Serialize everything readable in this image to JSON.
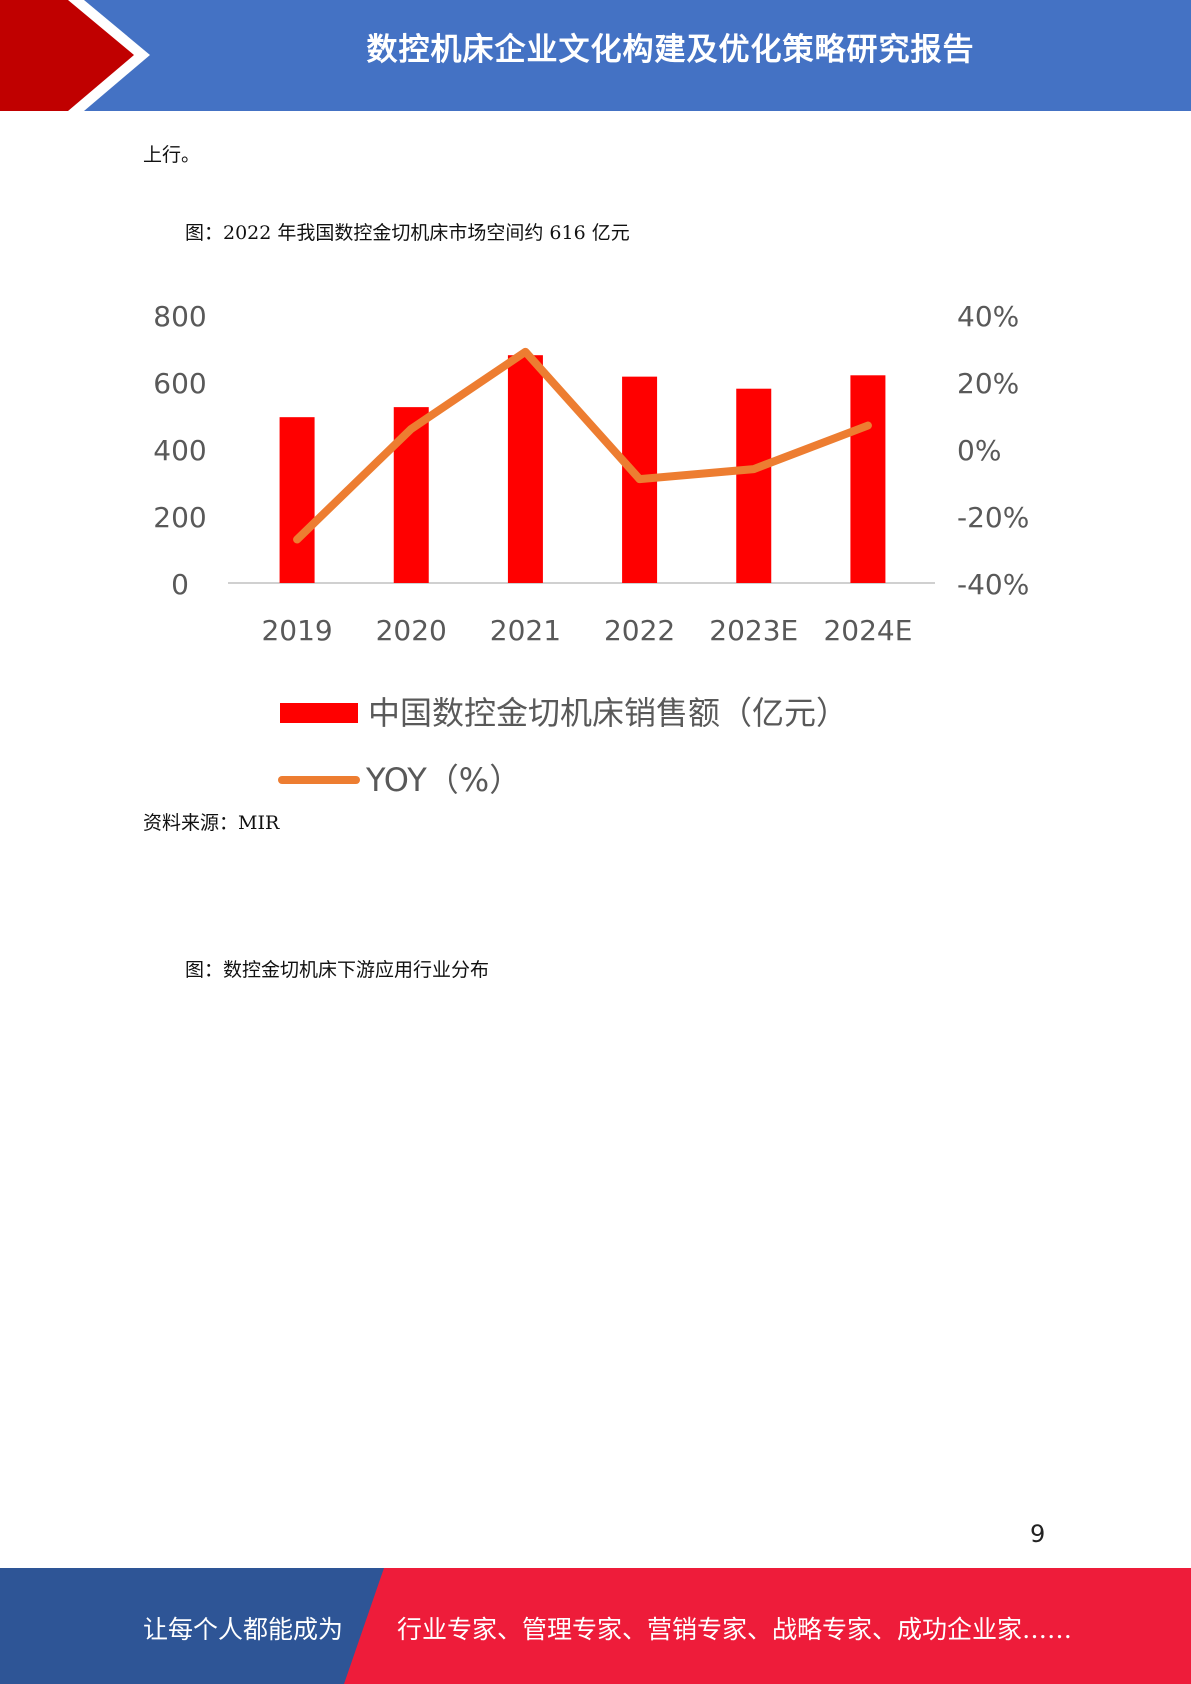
{
  "header": {
    "title": "数控机床企业文化构建及优化策略研究报告"
  },
  "body": {
    "continuation_text": "上行。",
    "figure1_caption": "图：2022 年我国数控金切机床市场空间约 616 亿元",
    "source_text": "资料来源：MIR",
    "figure2_caption": "图：数控金切机床下游应用行业分布"
  },
  "chart_data": {
    "type": "bar",
    "categories": [
      "2019",
      "2020",
      "2021",
      "2022",
      "2023E",
      "2024E"
    ],
    "series": [
      {
        "name": "中国数控金切机床销售额（亿元）",
        "type": "bar",
        "axis": "left",
        "color": "#ff0000",
        "values": [
          495,
          525,
          680,
          616,
          580,
          620
        ]
      },
      {
        "name": "YOY（%）",
        "type": "line",
        "axis": "right",
        "color": "#ed7d31",
        "values": [
          -27,
          6,
          29,
          -9,
          -6,
          7
        ]
      }
    ],
    "left_axis": {
      "ylim": [
        0,
        800
      ],
      "ticks": [
        "0",
        "200",
        "400",
        "600",
        "800"
      ]
    },
    "right_axis": {
      "ylim": [
        -40,
        40
      ],
      "ticks": [
        "-40%",
        "-20%",
        "0%",
        "20%",
        "40%"
      ]
    },
    "legend_position": "bottom"
  },
  "page": {
    "number": "9"
  },
  "footer": {
    "left_text": "让每个人都能成为",
    "right_text": "行业专家、管理专家、营销专家、战略专家、成功企业家……"
  },
  "colors": {
    "header_blue": "#4472c4",
    "header_red": "#c00000",
    "footer_blue": "#2e5596",
    "footer_red": "#ee1c3a"
  }
}
